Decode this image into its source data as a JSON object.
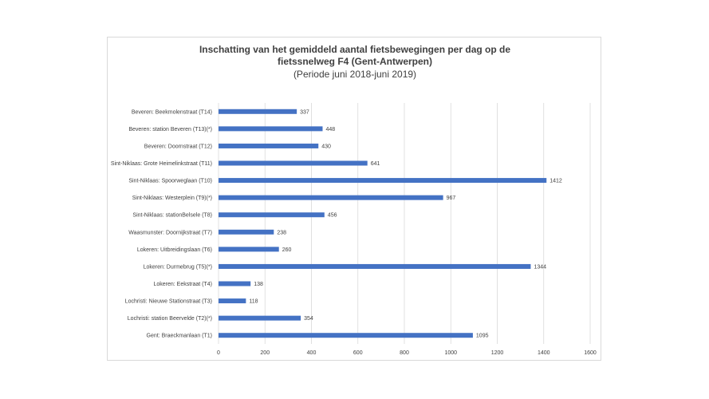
{
  "chart_data": {
    "type": "bar",
    "orientation": "horizontal",
    "title": "Inschatting van het gemiddeld aantal fietsbewegingen per dag op de fietssnelweg F4 (Gent-Antwerpen)",
    "subtitle": "(Periode  juni 2018-juni 2019)",
    "xlabel": "",
    "ylabel": "",
    "xlim": [
      0,
      1600
    ],
    "xticks": [
      0,
      200,
      400,
      600,
      800,
      1000,
      1200,
      1400,
      1600
    ],
    "grid": true,
    "color": "#4472c4",
    "categories": [
      "Beveren: Beekmolenstraat (T14)",
      "Beveren: station Beveren (T13)(*)",
      "Beveren: Doornstraat (T12)",
      "Sint-Niklaas: Grote Heimelinkstraat (T11)",
      "Sint-Niklaas: Spoorweglaan (T10)",
      "Sint-Niklaas: Westerplein (T9)(*)",
      "Sint-Niklaas: stationBelsele (T8)",
      "Waasmunster: Doornijkstraat (T7)",
      "Lokeren: Uitbreidingslaan (T6)",
      "Lokeren: Durmebrug (T5)(*)",
      "Lokeren: Eekstraat (T4)",
      "Lochristi: Nieuwe Stationstraat (T3)",
      "Lochristi: station Beervelde (T2)(*)",
      "Gent: Braeckmanlaan (T1)"
    ],
    "values": [
      337,
      448,
      430,
      641,
      1412,
      967,
      456,
      238,
      260,
      1344,
      138,
      118,
      354,
      1095
    ]
  }
}
